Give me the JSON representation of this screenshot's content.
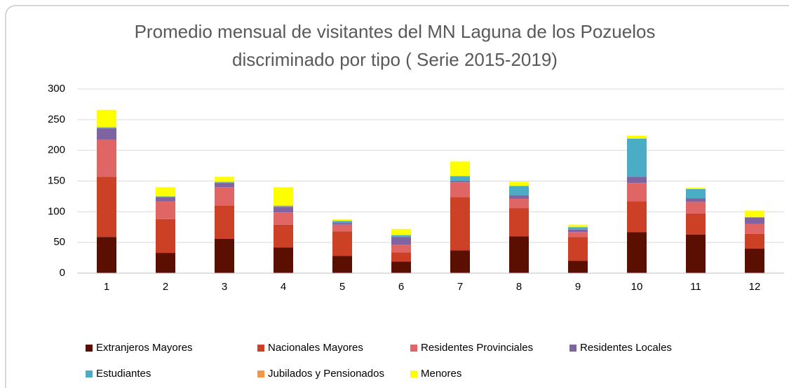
{
  "chart_data": {
    "type": "stacked_bar",
    "title": [
      "Promedio mensual de visitantes del MN Laguna de los Pozuelos",
      "discriminado por tipo ( Serie 2015-2019)"
    ],
    "categories": [
      "1",
      "2",
      "3",
      "4",
      "5",
      "6",
      "7",
      "8",
      "9",
      "10",
      "11",
      "12"
    ],
    "series": [
      {
        "name": "Extranjeros Mayores",
        "color": "#5b0f00",
        "values": [
          59,
          33,
          56,
          42,
          28,
          19,
          37,
          60,
          20,
          67,
          63,
          40
        ]
      },
      {
        "name": "Nacionales Mayores",
        "color": "#cc4125",
        "values": [
          98,
          55,
          54,
          37,
          40,
          15,
          87,
          46,
          39,
          50,
          34,
          24
        ]
      },
      {
        "name": "Residentes Provinciales",
        "color": "#e06666",
        "values": [
          60,
          29,
          30,
          20,
          11,
          12,
          24,
          15,
          8,
          30,
          19,
          16
        ]
      },
      {
        "name": "Residentes Locales",
        "color": "#8064a2",
        "values": [
          19,
          7,
          7,
          9,
          3,
          13,
          2,
          6,
          4,
          10,
          6,
          11
        ]
      },
      {
        "name": "Estudiantes",
        "color": "#4bacc6",
        "values": [
          1,
          1,
          1,
          1,
          3,
          3,
          8,
          15,
          4,
          62,
          15,
          0
        ]
      },
      {
        "name": "Jubilados y Pensionados",
        "color": "#f79646",
        "values": [
          1,
          0,
          1,
          1,
          0,
          0,
          0,
          0,
          0,
          0,
          0,
          0
        ]
      },
      {
        "name": "Menores",
        "color": "#ffff00",
        "values": [
          28,
          15,
          8,
          30,
          3,
          10,
          24,
          7,
          4,
          5,
          2,
          11
        ]
      }
    ],
    "ylim": [
      0,
      300
    ],
    "yticks": [
      0,
      50,
      100,
      150,
      200,
      250,
      300
    ],
    "grid": true,
    "legend": "bottom"
  }
}
